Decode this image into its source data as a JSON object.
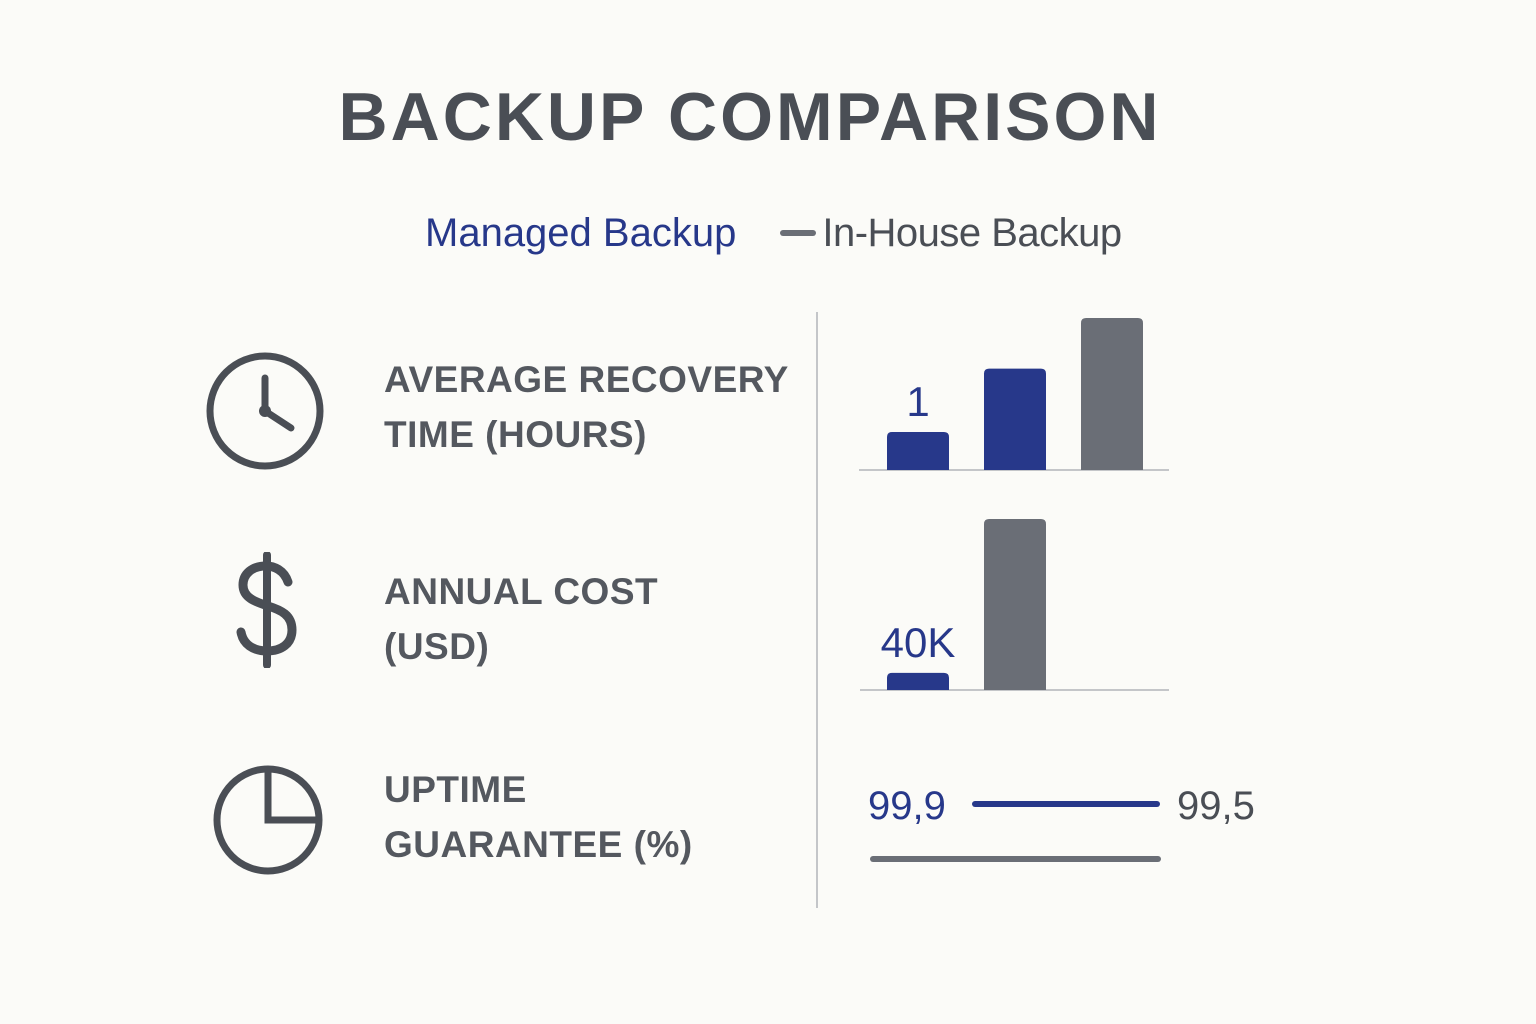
{
  "title": "BACKUP COMPARISON",
  "legend": {
    "managed": "Managed Backup",
    "in_house": "In-House Backup"
  },
  "colors": {
    "managed": "#27388a",
    "in_house": "#6a6e76",
    "text": "#4a4e55",
    "baseline": "#c4c6c9"
  },
  "metrics": [
    {
      "icon": "clock-icon",
      "label_line1": "AVERAGE RECOVERY",
      "label_line2": "TIME (HOURS)"
    },
    {
      "icon": "dollar-icon",
      "label_line1": "ANNUAL COST",
      "label_line2": "(USD)"
    },
    {
      "icon": "pie-chart-icon",
      "label_line1": "UPTIME",
      "label_line2": "GUARANTEE (%)"
    }
  ],
  "chart_data": [
    {
      "type": "bar",
      "title": "AVERAGE RECOVERY TIME (HOURS)",
      "bars": [
        {
          "series": "Managed Backup",
          "value": 1,
          "label": "1"
        },
        {
          "series": "Managed Backup",
          "value": 4,
          "label": ""
        },
        {
          "series": "In-House Backup",
          "value": 6,
          "label": ""
        }
      ],
      "ylim": [
        0,
        6
      ]
    },
    {
      "type": "bar",
      "title": "ANNUAL COST (USD)",
      "bars": [
        {
          "series": "Managed Backup",
          "value": 40000,
          "label": "40K"
        },
        {
          "series": "In-House Backup",
          "value": 400000,
          "label": ""
        }
      ],
      "ylim": [
        0,
        400000
      ]
    },
    {
      "type": "line",
      "title": "UPTIME GUARANTEE (%)",
      "series": [
        {
          "name": "Managed Backup",
          "value": 99.9,
          "label": "99,9"
        },
        {
          "name": "In-House Backup",
          "value": 99.5,
          "label": "99,5"
        }
      ]
    }
  ]
}
